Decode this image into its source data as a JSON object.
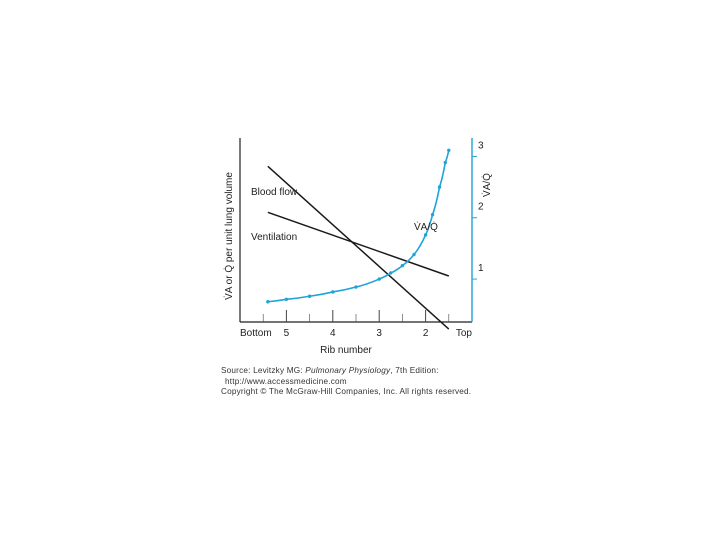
{
  "chart_data": {
    "type": "line",
    "title": "",
    "xlabel": "Rib number",
    "ylabel_left": "V̇A or Q̇ per unit lung volume",
    "ylabel_right": "V̇A/Q̇",
    "x_tick_labels": [
      "Bottom",
      "5",
      "4",
      "3",
      "2",
      "Top"
    ],
    "right_ticks": [
      {
        "label": "1",
        "value": 1
      },
      {
        "label": "2",
        "value": 2
      },
      {
        "label": "3",
        "value": 3
      }
    ],
    "right_ylim": [
      0.3,
      3.3
    ],
    "xlim": [
      0,
      10
    ],
    "series": [
      {
        "name": "Blood flow",
        "color": "#1a1a1a",
        "points": [
          [
            1.2,
            2.2
          ],
          [
            9.0,
            -0.1
          ]
        ]
      },
      {
        "name": "Ventilation",
        "color": "#1a1a1a",
        "points": [
          [
            1.2,
            1.55
          ],
          [
            9.0,
            0.65
          ]
        ]
      },
      {
        "name": "V̇A/Q̇",
        "color": "#1fa3d8",
        "axis": "right",
        "points": [
          [
            1.2,
            0.63
          ],
          [
            2.0,
            0.67
          ],
          [
            3.0,
            0.72
          ],
          [
            4.0,
            0.79
          ],
          [
            5.0,
            0.87
          ],
          [
            6.0,
            1.0
          ],
          [
            6.5,
            1.1
          ],
          [
            7.0,
            1.22
          ],
          [
            7.5,
            1.4
          ],
          [
            8.0,
            1.72
          ],
          [
            8.3,
            2.05
          ],
          [
            8.6,
            2.5
          ],
          [
            8.85,
            2.9
          ],
          [
            9.0,
            3.1
          ]
        ],
        "markers": true
      }
    ],
    "label_blood_flow": "Blood flow",
    "label_ventilation": "Ventilation",
    "label_ratio": "V̇A/Q̇",
    "grid": false
  },
  "source": {
    "line1_prefix": "Source: Levitzky MG: ",
    "line1_title": "Pulmonary Physiology",
    "line1_suffix": ", 7th Edition:",
    "line2": "http://www.accessmedicine.com",
    "line3": "Copyright © The McGraw-Hill Companies, Inc. All rights reserved."
  },
  "colors": {
    "accent": "#1fa3d8",
    "line": "#1a1a1a"
  }
}
